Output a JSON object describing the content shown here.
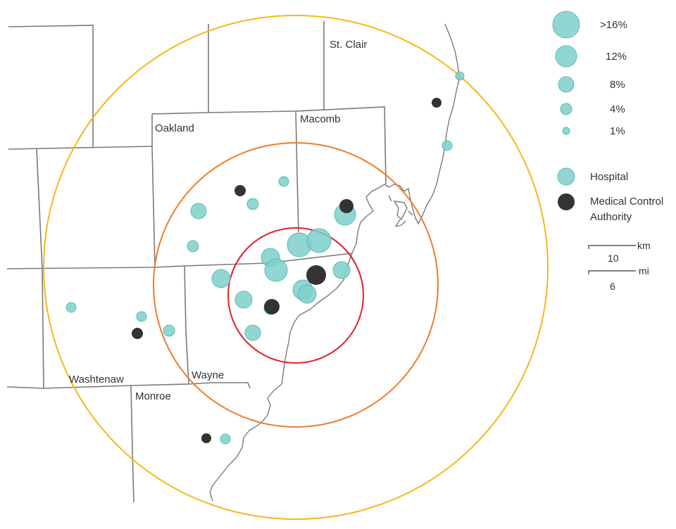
{
  "colors": {
    "hospital": "#7ecfcb",
    "hospital_stroke": "#5bbcb6",
    "mca": "#333333",
    "ring_inner": "#e0202a",
    "ring_middle": "#ee7d2a",
    "ring_outer": "#f4b81c"
  },
  "counties": [
    {
      "name": "St. Clair"
    },
    {
      "name": "Oakland"
    },
    {
      "name": "Macomb"
    },
    {
      "name": "Washtenaw"
    },
    {
      "name": "Wayne"
    },
    {
      "name": "Monroe"
    }
  ],
  "legend": {
    "sizes": [
      {
        "label": ">16%"
      },
      {
        "label": "12%"
      },
      {
        "label": "8%"
      },
      {
        "label": "4%"
      },
      {
        "label": "1%"
      }
    ],
    "types": [
      {
        "label": "Hospital",
        "icon": "hospital-marker"
      },
      {
        "label_line1": "Medical Control",
        "label_line2": "Authority",
        "icon": "mca-marker"
      }
    ]
  },
  "scale_bar": {
    "km_value": "10",
    "km_unit": "km",
    "mi_value": "6",
    "mi_unit": "mi"
  }
}
